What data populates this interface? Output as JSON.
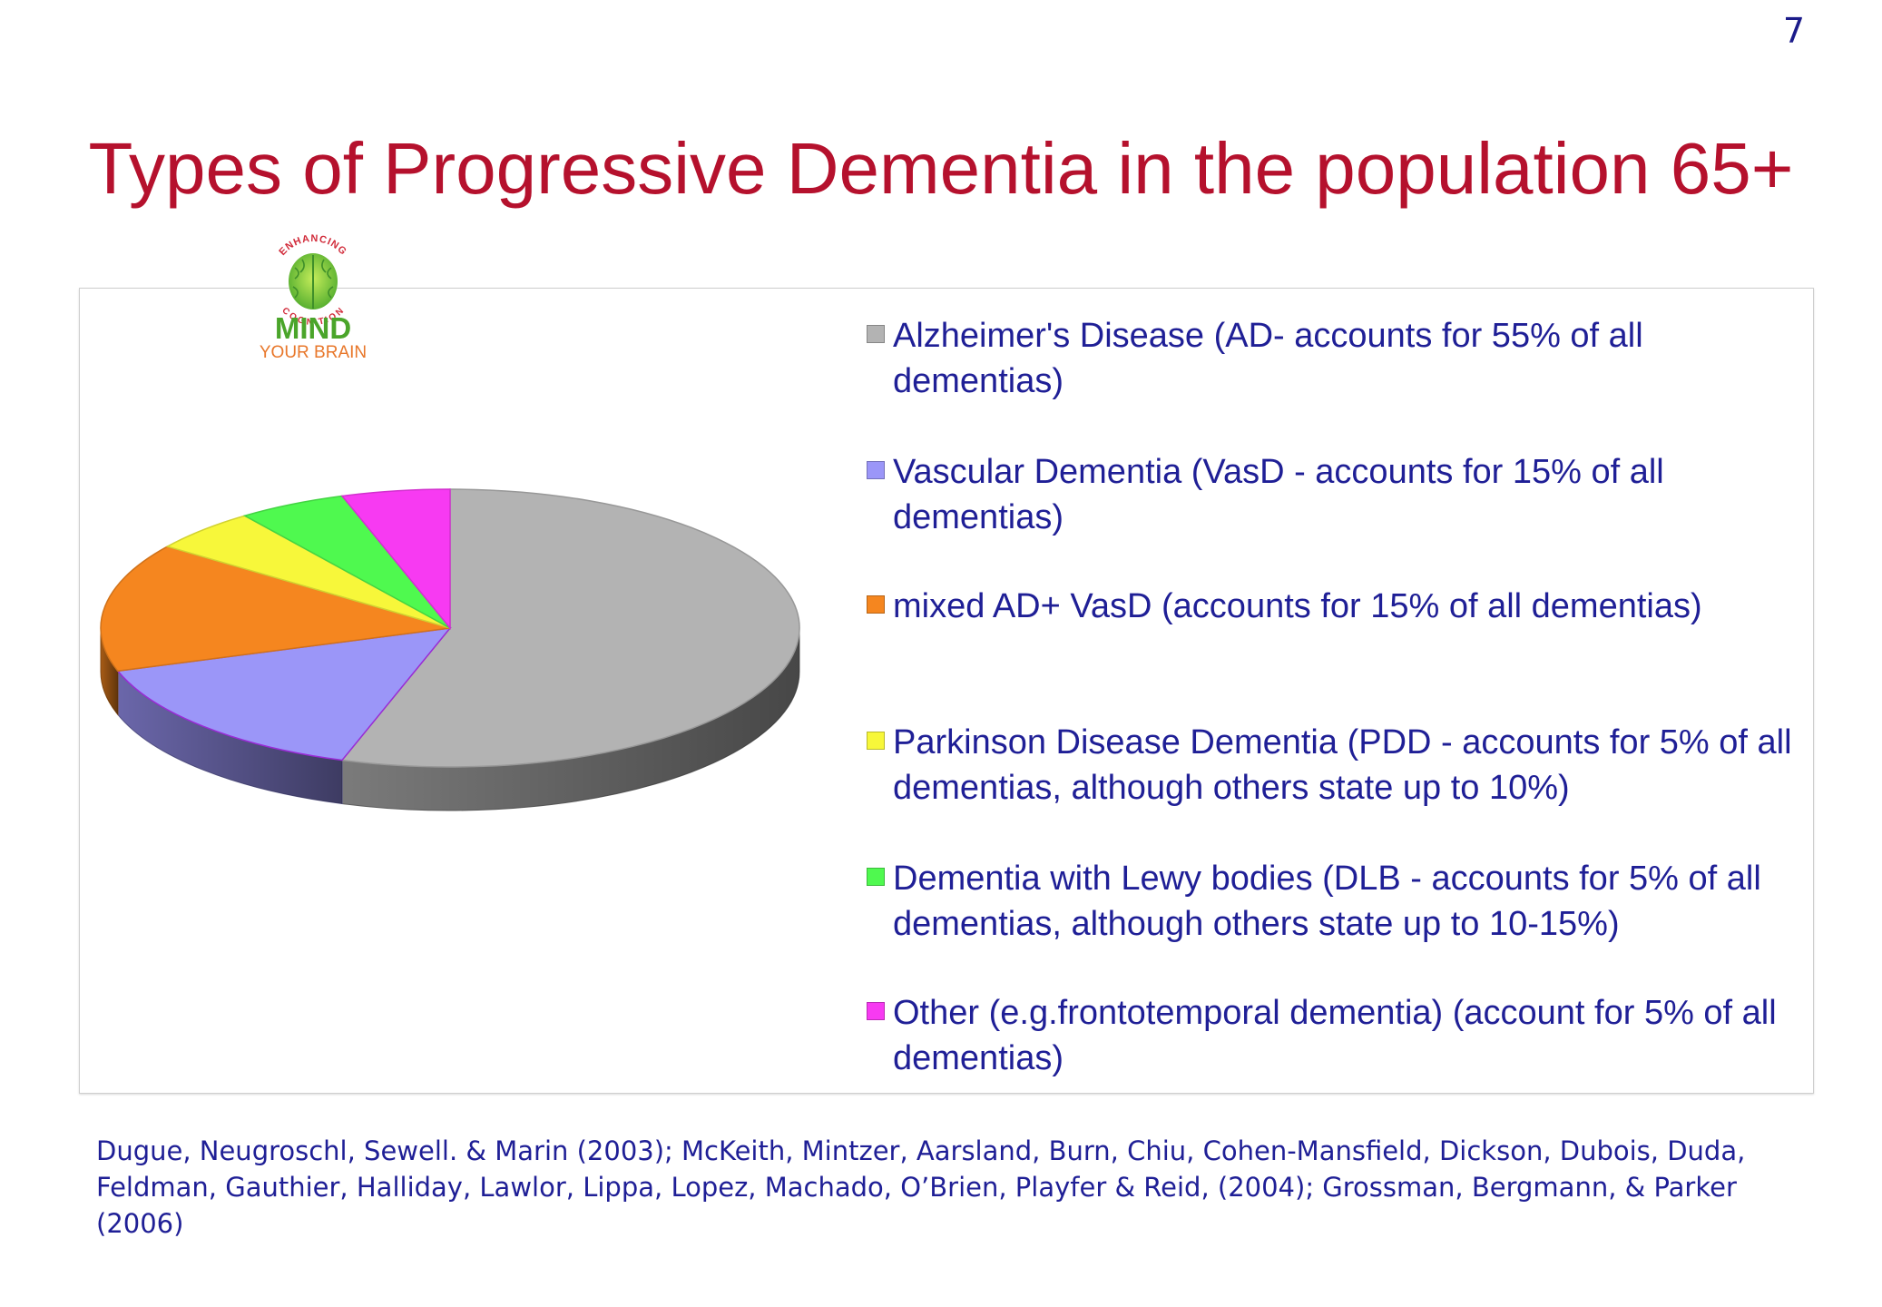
{
  "page_number": "7",
  "logo": {
    "arc_top": "ENHANCING",
    "arc_bottom": "COGNITION",
    "word1": "MIND",
    "word2": "YOUR BRAIN"
  },
  "chart_data": {
    "type": "pie",
    "title": "Types of Progressive Dementia in the population 65+",
    "style": "3d",
    "legend_position": "right",
    "slices": [
      {
        "label": "Alzheimer's Disease (AD- accounts for 55% of all dementias)",
        "value": 55,
        "color": "#b3b3b3"
      },
      {
        "label": "Vascular Dementia (VasD - accounts for 15% of all dementias)",
        "value": 15,
        "color": "#9b96f8"
      },
      {
        "label": "mixed AD+ VasD (accounts for 15% of all dementias)",
        "value": 15,
        "color": "#f5861f"
      },
      {
        "label": "Parkinson Disease Dementia (PDD - accounts for 5% of all dementias, although others state up to 10%)",
        "value": 5,
        "color": "#f7f73a"
      },
      {
        "label": "Dementia with Lewy bodies (DLB - accounts for 5% of all dementias, although others state up to 10-15%)",
        "value": 5,
        "color": "#4ff94f"
      },
      {
        "label": "Other (e.g.frontotemporal dementia) (account for 5% of all dementias)",
        "value": 5,
        "color": "#f73af2"
      }
    ]
  },
  "references": "Dugue, Neugroschl, Sewell. & Marin (2003); McKeith, Mintzer, Aarsland, Burn, Chiu, Cohen-Mansfield, Dickson, Dubois, Duda, Feldman, Gauthier, Halliday, Lawlor, Lippa, Lopez, Machado, O’Brien, Playfer & Reid, (2004); Grossman, Bergmann, & Parker (2006)"
}
